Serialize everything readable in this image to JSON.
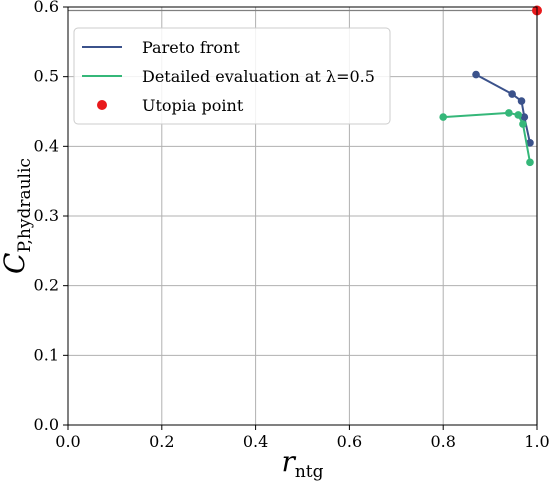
{
  "chart_data": {
    "type": "line",
    "title": "",
    "xlabel": "r",
    "xlabel_sub": "ntg",
    "ylabel": "C",
    "ylabel_sub": "P,hydraulic",
    "xlim": [
      0.0,
      1.0
    ],
    "ylim": [
      0.0,
      0.6
    ],
    "xticks": [
      "0.0",
      "0.2",
      "0.4",
      "0.6",
      "0.8",
      "1.0"
    ],
    "yticks": [
      "0.0",
      "0.1",
      "0.2",
      "0.3",
      "0.4",
      "0.5",
      "0.6"
    ],
    "grid": true,
    "legend_position": "top-left",
    "series": [
      {
        "name": "Pareto front",
        "color": "#3b528b",
        "marker": "circle",
        "x": [
          0.87,
          0.947,
          0.967,
          0.973,
          0.985
        ],
        "y": [
          0.503,
          0.475,
          0.465,
          0.442,
          0.405
        ]
      },
      {
        "name": "Detailed evaluation at λ=0.5",
        "color": "#35b779",
        "marker": "circle",
        "x": [
          0.8,
          0.94,
          0.96,
          0.97,
          0.985
        ],
        "y": [
          0.442,
          0.448,
          0.445,
          0.432,
          0.377
        ]
      }
    ],
    "utopia": {
      "name": "Utopia point",
      "color": "#e8191b",
      "x": 1.0,
      "y": 0.595
    }
  }
}
